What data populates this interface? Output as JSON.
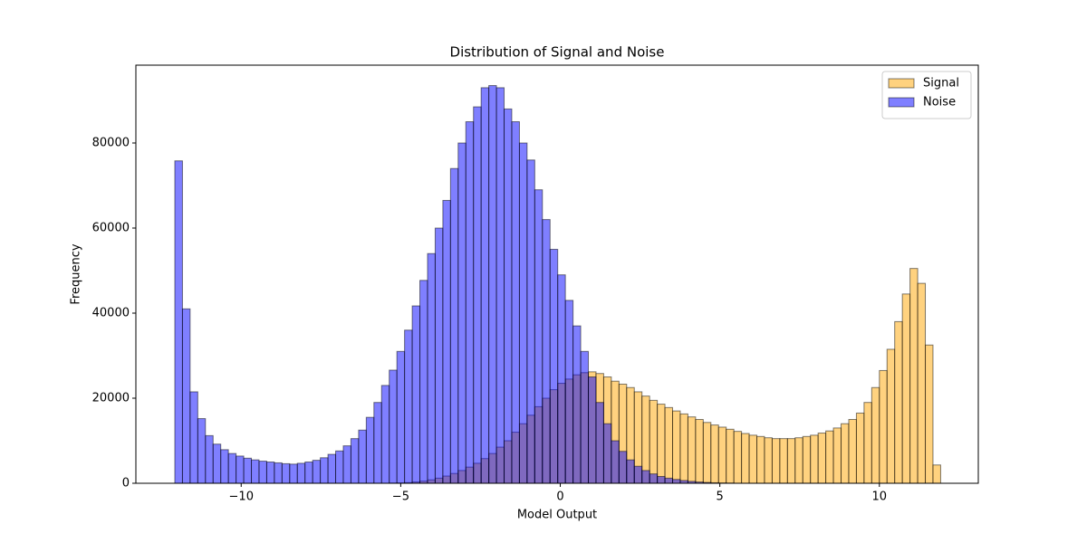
{
  "chart_data": {
    "type": "histogram",
    "title": "Distribution of Signal and Noise",
    "x_label": "Model Output",
    "y_label": "Frequency",
    "bins": [
      -12.08,
      -11.84,
      -11.6,
      -11.36,
      -11.12,
      -10.88,
      -10.64,
      -10.4,
      -10.16,
      -9.92,
      -9.68,
      -9.44,
      -9.2,
      -8.96,
      -8.72,
      -8.48,
      -8.24,
      -8,
      -7.76,
      -7.52,
      -7.28,
      -7.04,
      -6.8,
      -6.56,
      -6.32,
      -6.08,
      -5.84,
      -5.6,
      -5.36,
      -5.12,
      -4.88,
      -4.64,
      -4.4,
      -4.16,
      -3.92,
      -3.68,
      -3.44,
      -3.2,
      -2.96,
      -2.72,
      -2.48,
      -2.24,
      -2,
      -1.76,
      -1.52,
      -1.28,
      -1.04,
      -0.8,
      -0.56,
      -0.32,
      -0.08,
      0.16,
      0.4,
      0.64,
      0.88,
      1.12,
      1.36,
      1.6,
      1.84,
      2.08,
      2.32,
      2.56,
      2.8,
      3.04,
      3.28,
      3.52,
      3.76,
      4,
      4.24,
      4.48,
      4.72,
      4.96,
      5.2,
      5.44,
      5.68,
      5.92,
      6.16,
      6.4,
      6.64,
      6.88,
      7.12,
      7.36,
      7.6,
      7.84,
      8.08,
      8.32,
      8.56,
      8.8,
      9.04,
      9.28,
      9.52,
      9.76,
      10,
      10.24,
      10.48,
      10.72,
      10.96,
      11.2,
      11.44,
      11.68,
      11.92
    ],
    "series": [
      {
        "name": "Signal",
        "color": "orange",
        "alpha": 0.5,
        "values": [
          0,
          0,
          0,
          0,
          0,
          0,
          0,
          0,
          0,
          0,
          0,
          0,
          0,
          0,
          0,
          0,
          0,
          0,
          0,
          0,
          0,
          0,
          0,
          0,
          0,
          0,
          0,
          0,
          40,
          80,
          150,
          300,
          500,
          800,
          1200,
          1700,
          2300,
          3000,
          3800,
          4700,
          5800,
          7000,
          8500,
          10000,
          12000,
          14000,
          16000,
          18000,
          20000,
          22000,
          23500,
          24500,
          25500,
          26000,
          26200,
          25800,
          25000,
          24000,
          23300,
          22500,
          21500,
          20500,
          19500,
          18600,
          17800,
          17000,
          16300,
          15600,
          15000,
          14300,
          13700,
          13200,
          12700,
          12200,
          11700,
          11300,
          11000,
          10700,
          10500,
          10500,
          10500,
          10700,
          11000,
          11300,
          11800,
          12300,
          13000,
          14000,
          15000,
          16500,
          19000,
          22500,
          26500,
          31500,
          38000,
          44500,
          50500,
          47000,
          32500,
          4300
        ]
      },
      {
        "name": "Noise",
        "color": "blue",
        "alpha": 0.5,
        "values": [
          75800,
          41000,
          21500,
          15200,
          11200,
          9200,
          7900,
          7000,
          6400,
          5900,
          5500,
          5200,
          5000,
          4800,
          4600,
          4500,
          4700,
          5000,
          5400,
          6000,
          6800,
          7600,
          8800,
          10500,
          12500,
          15500,
          19000,
          23000,
          26600,
          31000,
          36000,
          41700,
          47700,
          54000,
          60000,
          66500,
          74000,
          80000,
          85000,
          88500,
          93000,
          93500,
          93000,
          88000,
          85000,
          80000,
          76000,
          69000,
          62000,
          55000,
          49000,
          43000,
          37000,
          31000,
          25000,
          19000,
          14000,
          10000,
          7500,
          5500,
          4000,
          3000,
          2200,
          1600,
          1200,
          900,
          650,
          450,
          300,
          200,
          120,
          70,
          40,
          0,
          0,
          0,
          0,
          0,
          0,
          0,
          0,
          0,
          0,
          0,
          0,
          0,
          0,
          0,
          0,
          0,
          0,
          0,
          0,
          0,
          0,
          0,
          0,
          0,
          0,
          0
        ]
      }
    ],
    "xlim": [
      -13.3,
      13.1
    ],
    "ylim": [
      0,
      98300
    ],
    "xticks": [
      {
        "value": -10,
        "label": "−10"
      },
      {
        "value": -5,
        "label": "−5"
      },
      0,
      5,
      10
    ],
    "yticks": [
      0,
      20000,
      40000,
      60000,
      80000
    ],
    "grid": false,
    "legend": "upper right"
  }
}
